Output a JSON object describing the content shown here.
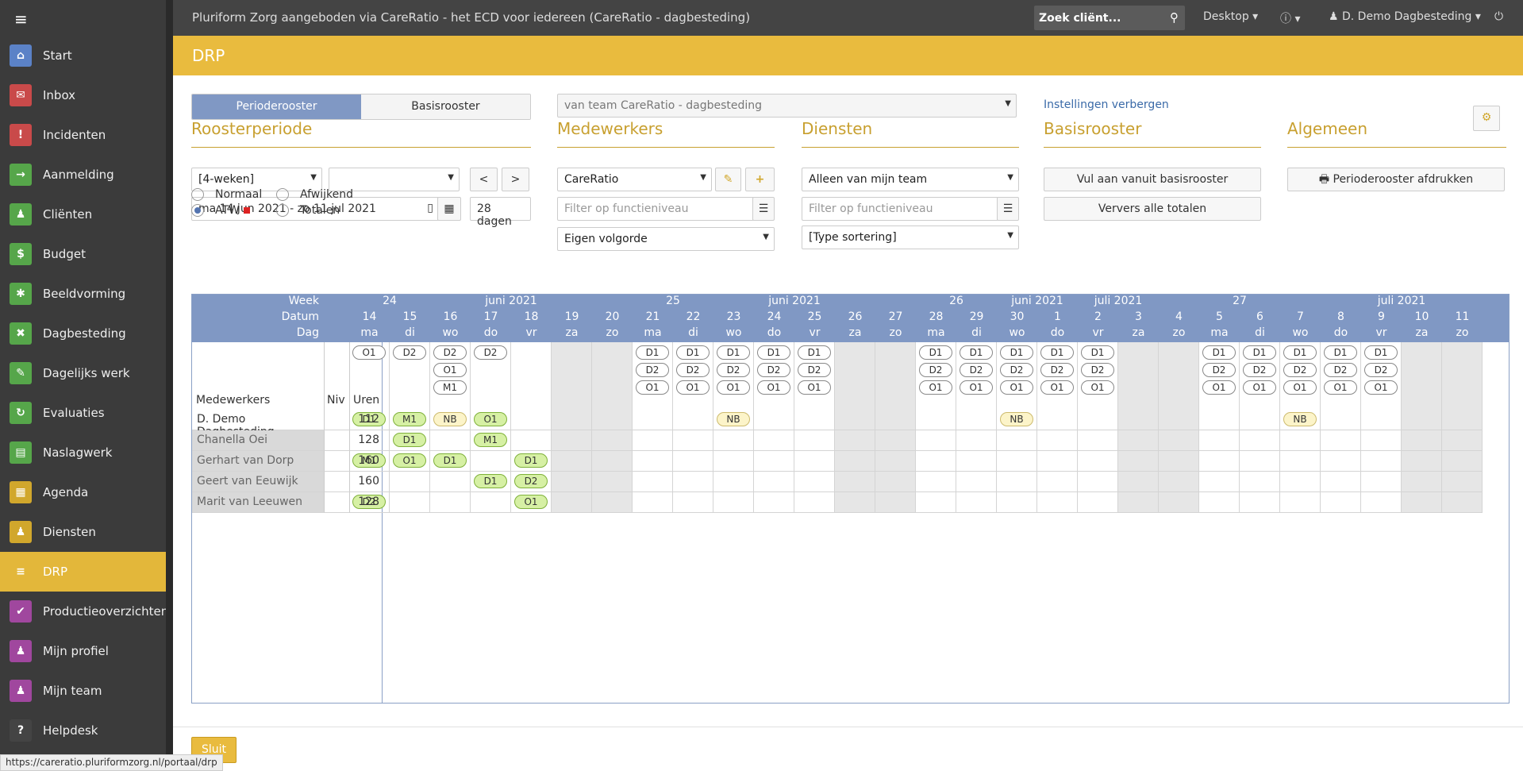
{
  "app_title": "Pluriform Zorg aangeboden via CareRatio - het ECD voor iedereen  (CareRatio - dagbesteding)",
  "search_placeholder": "Zoek cliënt...",
  "desktop": "Desktop ▾",
  "info": "ⓘ ▾",
  "user": "♟ D. Demo Dagbesteding ▾",
  "power": "⏻",
  "sidebar": [
    {
      "label": "Start",
      "icon": "home-icon",
      "color": "#5b82c7",
      "glyph": "⌂"
    },
    {
      "label": "Inbox",
      "icon": "inbox-icon",
      "color": "#c94a4a",
      "glyph": "✉"
    },
    {
      "label": "Incidenten",
      "icon": "warning-icon",
      "color": "#c94a4a",
      "glyph": "!"
    },
    {
      "label": "Aanmelding",
      "icon": "sign-in-icon",
      "color": "#56a64a",
      "glyph": "→"
    },
    {
      "label": "Cliënten",
      "icon": "client-icon",
      "color": "#56a64a",
      "glyph": "♟"
    },
    {
      "label": "Budget",
      "icon": "money-icon",
      "color": "#56a64a",
      "glyph": "$"
    },
    {
      "label": "Beeldvorming",
      "icon": "puzzle-icon",
      "color": "#56a64a",
      "glyph": "✱"
    },
    {
      "label": "Dagbesteding",
      "icon": "tools-icon",
      "color": "#56a64a",
      "glyph": "✖"
    },
    {
      "label": "Dagelijks werk",
      "icon": "pencil-icon",
      "color": "#56a64a",
      "glyph": "✎"
    },
    {
      "label": "Evaluaties",
      "icon": "refresh-icon",
      "color": "#56a64a",
      "glyph": "↻"
    },
    {
      "label": "Naslagwerk",
      "icon": "book-icon",
      "color": "#56a64a",
      "glyph": "▤"
    },
    {
      "label": "Agenda",
      "icon": "calendar-icon",
      "color": "#d1a72c",
      "glyph": "▦"
    },
    {
      "label": "Diensten",
      "icon": "person-icon",
      "color": "#d1a72c",
      "glyph": "♟"
    },
    {
      "label": "DRP",
      "icon": "sliders-icon",
      "color": "#e3b73a",
      "glyph": "≡"
    },
    {
      "label": "Productieoverzichten",
      "icon": "check-icon",
      "color": "#a0479e",
      "glyph": "✔"
    },
    {
      "label": "Mijn profiel",
      "icon": "profile-icon",
      "color": "#a0479e",
      "glyph": "♟"
    },
    {
      "label": "Mijn team",
      "icon": "team-icon",
      "color": "#a0479e",
      "glyph": "♟"
    },
    {
      "label": "Helpdesk",
      "icon": "help-icon",
      "color": "#444",
      "glyph": "?"
    }
  ],
  "page_title": "DRP",
  "tabs": {
    "perioderooster": "Perioderooster",
    "basisrooster": "Basisrooster"
  },
  "team_select": "van team CareRatio - dagbesteding",
  "instellingen_link": "Instellingen verbergen",
  "roosterperiode": {
    "heading": "Roosterperiode",
    "period_select": "[4-weken]",
    "period_select2": "",
    "prev": "<",
    "next": ">",
    "date_range": "ma 14 jun 2021 - zo 11 jul 2021",
    "days": "28 dagen",
    "radios": [
      {
        "label": "Normaal",
        "checked": false
      },
      {
        "label": "Afwijkend",
        "checked": false
      },
      {
        "label": "ATW",
        "checked": true
      },
      {
        "label": "Totalen",
        "checked": false
      }
    ]
  },
  "medewerkers": {
    "heading": "Medewerkers",
    "select": "CareRatio",
    "filter_placeholder": "Filter op functieniveau",
    "order": "Eigen volgorde"
  },
  "diensten": {
    "heading": "Diensten",
    "select": "Alleen van mijn team",
    "filter_placeholder": "Filter op functieniveau",
    "sort": "[Type sortering]"
  },
  "basisrooster": {
    "heading": "Basisrooster",
    "fill": "Vul aan vanuit basisrooster",
    "refresh": "Ververs alle totalen"
  },
  "algemeen": {
    "heading": "Algemeen",
    "print": "🖶  Perioderooster afdrukken"
  },
  "grid": {
    "labels": {
      "week": "Week",
      "datum": "Datum",
      "dag": "Dag",
      "medewerkers": "Medewerkers",
      "niv": "Niv",
      "uren": "Uren"
    },
    "week_row": [
      "24",
      "",
      "",
      "juni 2021",
      "",
      "",
      "",
      "25",
      "",
      "",
      "juni 2021",
      "",
      "",
      "",
      "26",
      "",
      "juni 2021",
      "",
      "juli 2021",
      "",
      "",
      "27",
      "",
      "",
      "",
      "juli 2021",
      "",
      ""
    ],
    "dates": [
      "14",
      "15",
      "16",
      "17",
      "18",
      "19",
      "20",
      "21",
      "22",
      "23",
      "24",
      "25",
      "26",
      "27",
      "28",
      "29",
      "30",
      "1",
      "2",
      "3",
      "4",
      "5",
      "6",
      "7",
      "8",
      "9",
      "10",
      "11"
    ],
    "days": [
      "ma",
      "di",
      "wo",
      "do",
      "vr",
      "za",
      "zo",
      "ma",
      "di",
      "wo",
      "do",
      "vr",
      "za",
      "zo",
      "ma",
      "di",
      "wo",
      "do",
      "vr",
      "za",
      "zo",
      "ma",
      "di",
      "wo",
      "do",
      "vr",
      "za",
      "zo"
    ],
    "required": [
      [
        "O1"
      ],
      [
        "D2"
      ],
      [
        "D2",
        "O1",
        "M1"
      ],
      [
        "D2"
      ],
      [],
      [],
      [],
      [
        "D1",
        "D2",
        "O1"
      ],
      [
        "D1",
        "D2",
        "O1"
      ],
      [
        "D1",
        "D2",
        "O1"
      ],
      [
        "D1",
        "D2",
        "O1"
      ],
      [
        "D1",
        "D2",
        "O1"
      ],
      [],
      [],
      [
        "D1",
        "D2",
        "O1"
      ],
      [
        "D1",
        "D2",
        "O1"
      ],
      [
        "D1",
        "D2",
        "O1"
      ],
      [
        "D1",
        "D2",
        "O1"
      ],
      [
        "D1",
        "D2",
        "O1"
      ],
      [],
      [],
      [
        "D1",
        "D2",
        "O1"
      ],
      [
        "D1",
        "D2",
        "O1"
      ],
      [
        "D1",
        "D2",
        "O1"
      ],
      [
        "D1",
        "D2",
        "O1"
      ],
      [
        "D1",
        "D2",
        "O1"
      ],
      [],
      []
    ],
    "employees": [
      {
        "name": "D. Demo Dagbesteding",
        "uren": "112",
        "alt": false,
        "shifts": {
          "0": "D1",
          "1": "M1",
          "2": "NB",
          "3": "O1",
          "9": "NB",
          "16": "NB",
          "23": "NB"
        }
      },
      {
        "name": "Chanella Oei",
        "uren": "128",
        "alt": true,
        "shifts": {
          "1": "D1",
          "3": "M1"
        }
      },
      {
        "name": "Gerhart van Dorp",
        "uren": "160",
        "alt": true,
        "shifts": {
          "0": "M1",
          "1": "O1",
          "2": "D1",
          "4": "D1"
        }
      },
      {
        "name": "Geert van Eeuwijk",
        "uren": "160",
        "alt": true,
        "shifts": {
          "3": "D1",
          "4": "D2"
        }
      },
      {
        "name": "Marit van Leeuwen",
        "uren": "128",
        "alt": true,
        "shifts": {
          "0": "D2",
          "4": "O1"
        }
      }
    ]
  },
  "footer": {
    "close": "Sluit"
  },
  "status_url": "https://careratio.pluriformzorg.nl/portaal/drp"
}
